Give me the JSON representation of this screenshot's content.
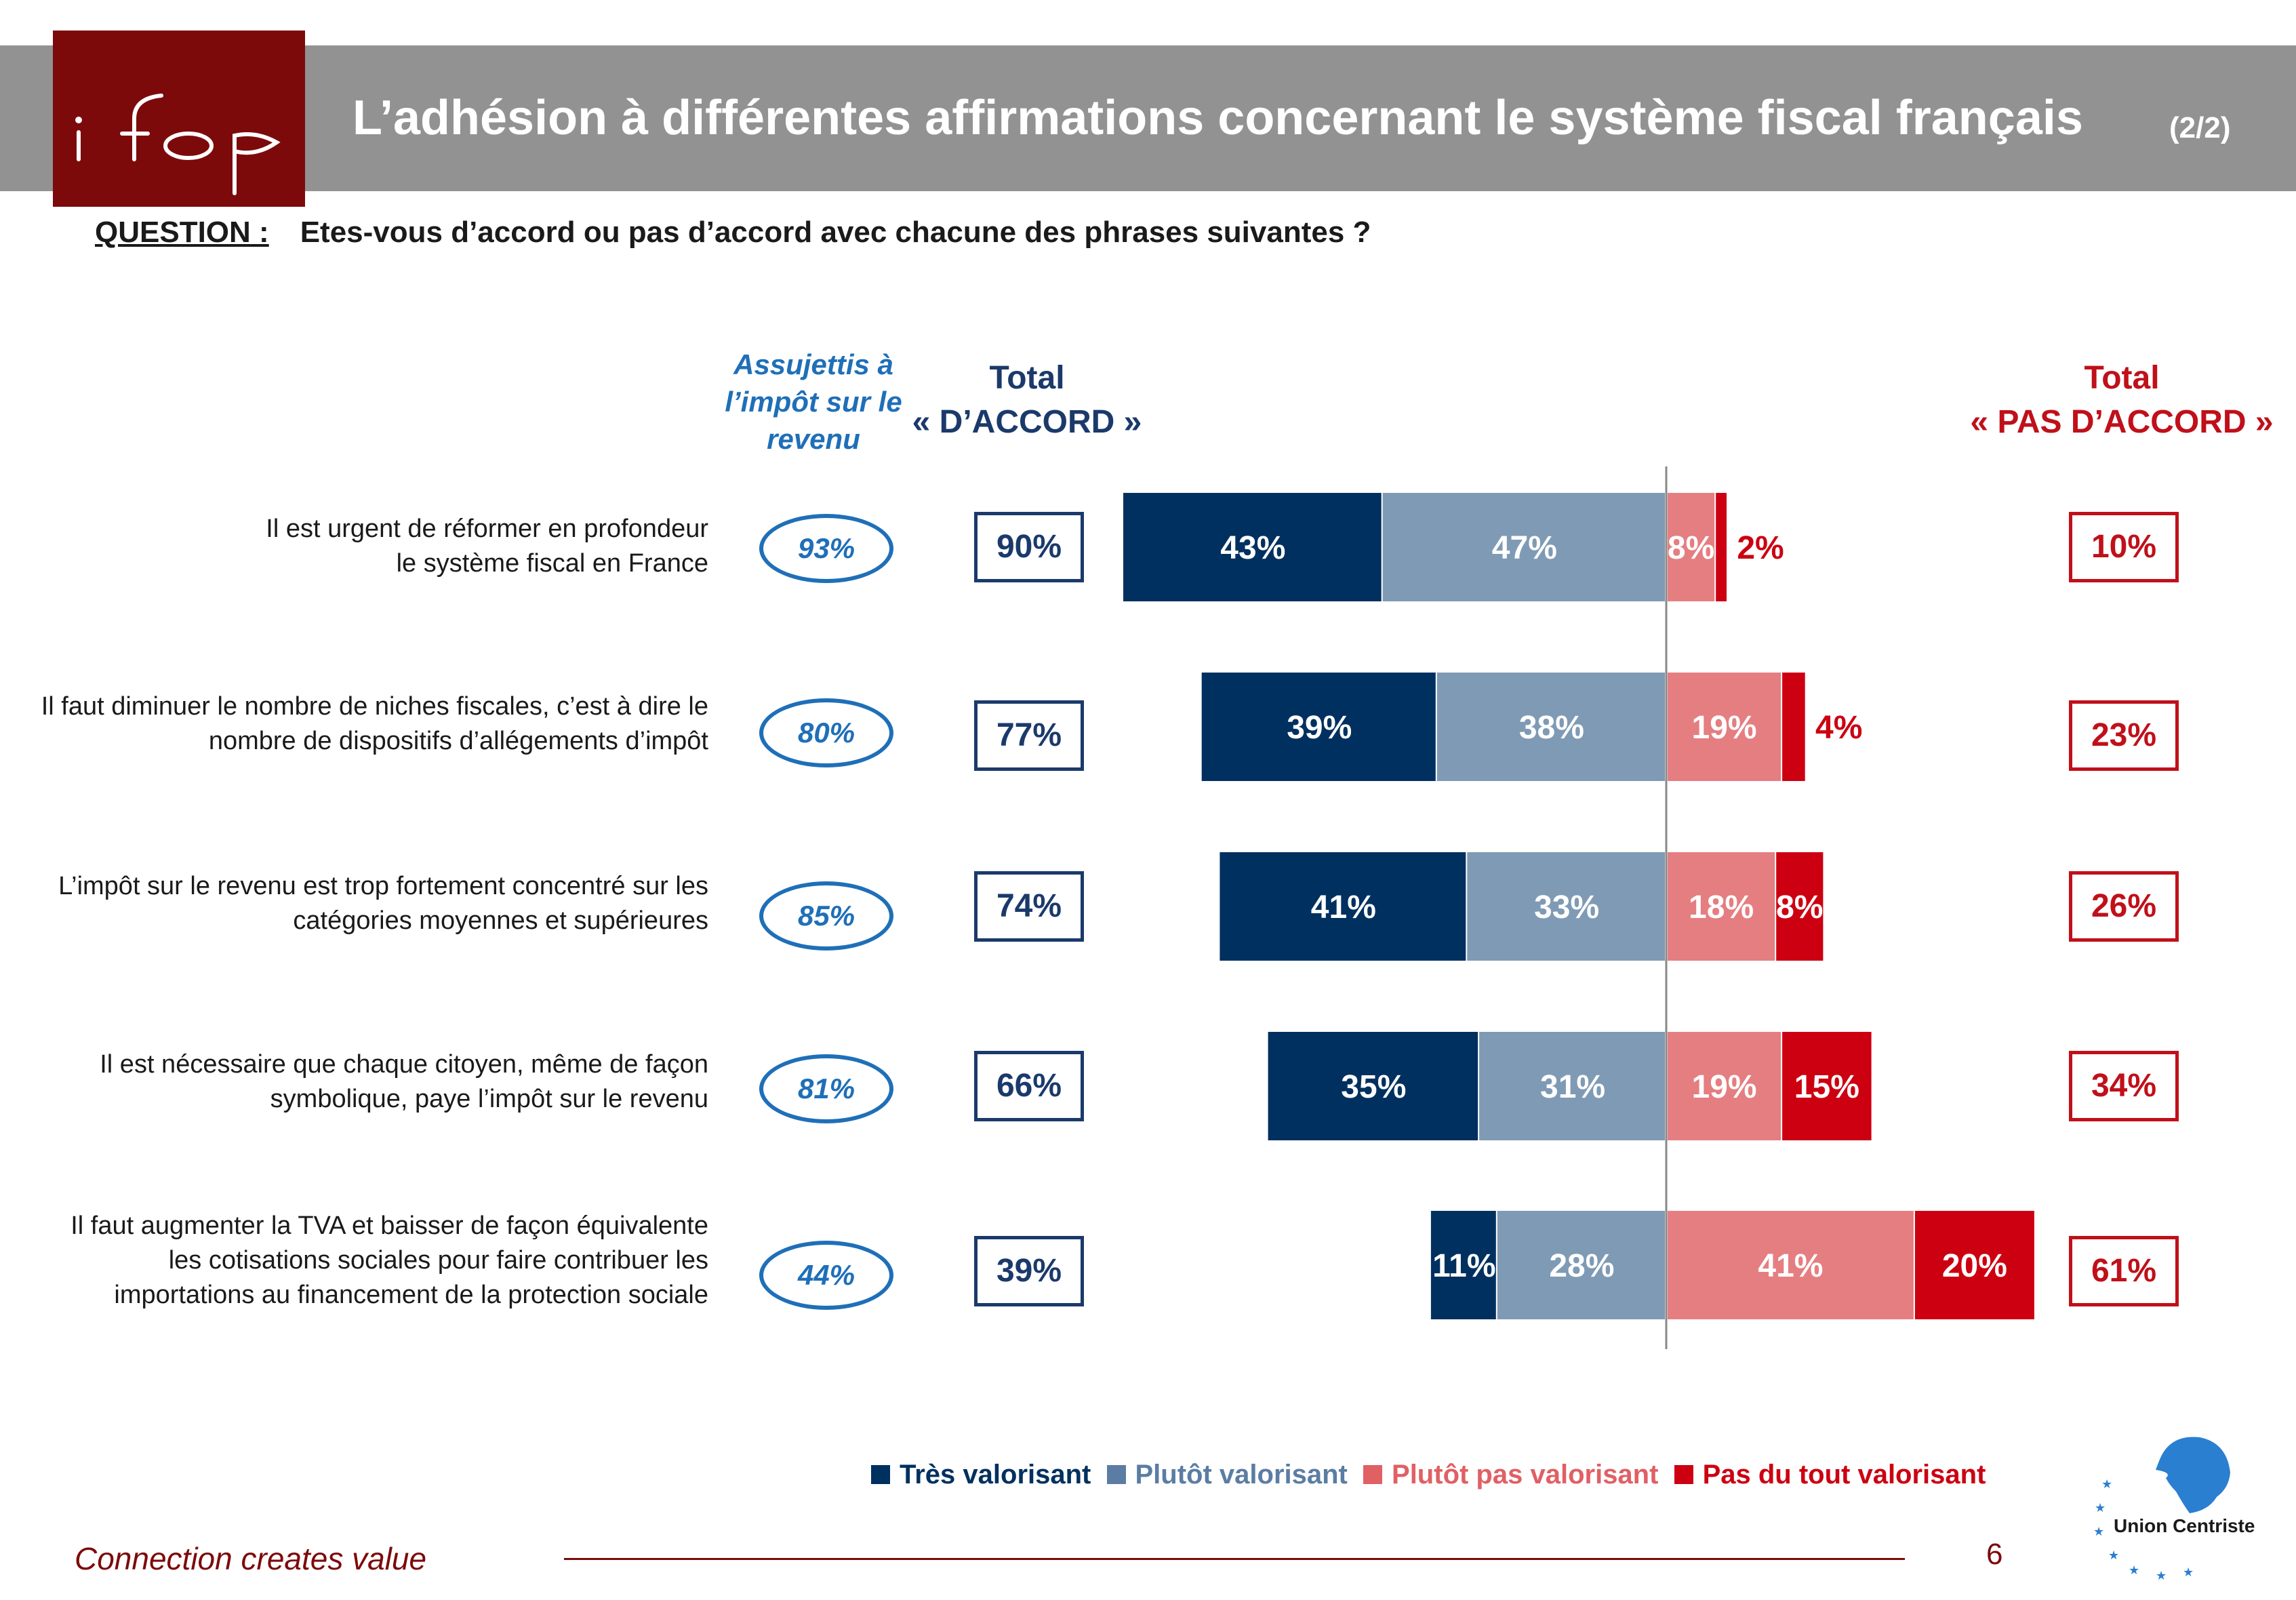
{
  "header": {
    "logo_text": "ifop",
    "title": "L’adhésion à différentes affirmations concernant le système fiscal français",
    "pager": "(2/2)"
  },
  "question": {
    "label": "QUESTION :",
    "text": "Etes-vous d’accord ou pas d’accord avec chacune des phrases suivantes ?"
  },
  "columns": {
    "subgroup": [
      "Assujettis à",
      "l’impôt sur le",
      "revenu"
    ],
    "total_accord": [
      "Total",
      "« D’ACCORD »"
    ],
    "total_pas_accord": [
      "Total",
      "« PAS D’ACCORD »"
    ]
  },
  "rows": [
    {
      "statement": [
        "Il est urgent de réformer en profondeur",
        "le système fiscal en France"
      ],
      "subgroup": "93%",
      "total_accord": "90%",
      "total_pas_accord": "10%"
    },
    {
      "statement": [
        "Il faut diminuer le nombre de niches fiscales, c’est à dire le",
        "nombre de dispositifs d’allégements d’impôt"
      ],
      "subgroup": "80%",
      "total_accord": "77%",
      "total_pas_accord": "23%"
    },
    {
      "statement": [
        "L’impôt sur le revenu est trop fortement concentré sur les",
        "catégories moyennes et supérieures"
      ],
      "subgroup": "85%",
      "total_accord": "74%",
      "total_pas_accord": "26%"
    },
    {
      "statement": [
        "Il est nécessaire que chaque citoyen, même de façon",
        "symbolique, paye l’impôt sur le revenu"
      ],
      "subgroup": "81%",
      "total_accord": "66%",
      "total_pas_accord": "34%"
    },
    {
      "statement": [
        "Il faut augmenter la TVA et baisser de façon équivalente",
        "les cotisations sociales pour faire contribuer les",
        "importations au financement de la protection sociale"
      ],
      "subgroup": "44%",
      "total_accord": "39%",
      "total_pas_accord": "61%"
    }
  ],
  "chart_data": {
    "type": "bar",
    "orientation": "horizontal-diverging",
    "categories": [
      "Il est urgent de réformer en profondeur le système fiscal en France",
      "Il faut diminuer le nombre de niches fiscales, c’est à dire le nombre de dispositifs d’allégements d’impôt",
      "L’impôt sur le revenu est trop fortement concentré sur les catégories moyennes et supérieures",
      "Il est nécessaire que chaque citoyen, même de façon symbolique, paye l’impôt sur le revenu",
      "Il faut augmenter la TVA et baisser de façon équivalente les cotisations sociales pour faire contribuer les importations au financement de la protection sociale"
    ],
    "series": [
      {
        "name": "Très valorisant",
        "side": "left",
        "color": "#00305f",
        "values": [
          43,
          39,
          41,
          35,
          11
        ]
      },
      {
        "name": "Plutôt valorisant",
        "side": "left",
        "color": "#7f9ab4",
        "values": [
          47,
          38,
          33,
          31,
          28
        ]
      },
      {
        "name": "Plutôt pas valorisant",
        "side": "right",
        "color": "#e57e81",
        "values": [
          8,
          19,
          18,
          19,
          41
        ]
      },
      {
        "name": "Pas du tout valorisant",
        "side": "right",
        "color": "#cc0011",
        "values": [
          2,
          4,
          8,
          15,
          20
        ]
      }
    ],
    "unit": "%",
    "legend_position": "bottom",
    "grid": false
  },
  "legend": [
    {
      "label": "Très valorisant",
      "color": "#00305f"
    },
    {
      "label": "Plutôt valorisant",
      "color": "#5b7da3"
    },
    {
      "label": "Plutôt pas valorisant",
      "color": "#e06064"
    },
    {
      "label": "Pas du tout valorisant",
      "color": "#cc0011"
    }
  ],
  "footer": {
    "tagline": "Connection creates value",
    "page_number": "6",
    "partner_logo": "Union Centriste"
  }
}
